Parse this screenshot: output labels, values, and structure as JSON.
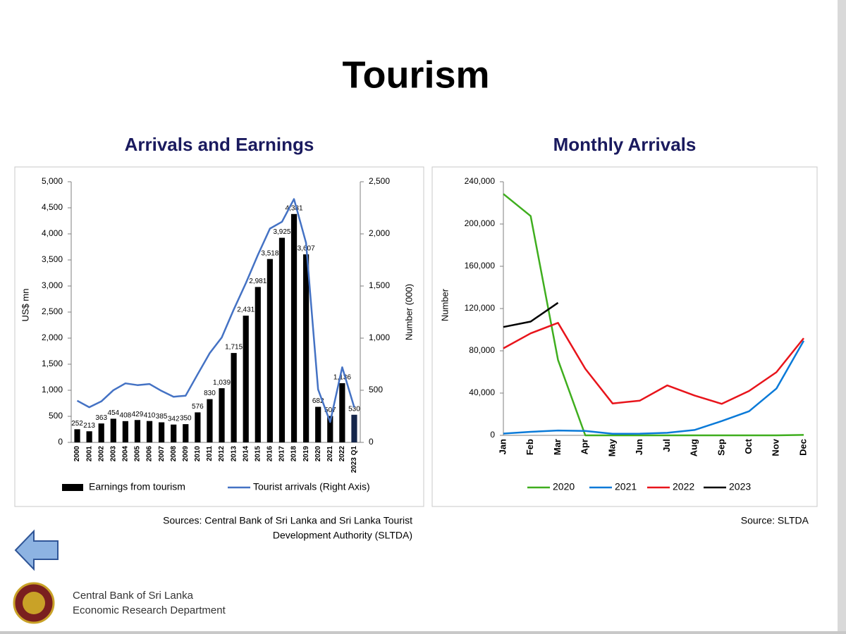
{
  "title": "Tourism",
  "sources": [
    "Sources: Central Bank of Sri Lanka and Sri Lanka Tourist",
    "Development Authority (SLTDA)"
  ],
  "source2": "Source: SLTDA",
  "footer": [
    "Central Bank of Sri Lanka",
    "Economic Research Department"
  ],
  "chart_data": [
    {
      "type": "bar",
      "title": "Arrivals and Earnings",
      "categories": [
        "2000",
        "2001",
        "2002",
        "2003",
        "2004",
        "2005",
        "2006",
        "2007",
        "2008",
        "2009",
        "2010",
        "2011",
        "2012",
        "2013",
        "2014",
        "2015",
        "2016",
        "2017",
        "2018",
        "2019",
        "2020",
        "2021",
        "2022",
        "2023 Q1"
      ],
      "series": [
        {
          "name": "Earnings from tourism",
          "type": "bar",
          "color": "#000000",
          "values": [
            252,
            213,
            363,
            454,
            408,
            429,
            410,
            385,
            342,
            350,
            576,
            830,
            1039,
            1715,
            2431,
            2981,
            3518,
            3925,
            4381,
            3607,
            682,
            507,
            1136,
            530
          ],
          "value_labels": [
            "252",
            "213",
            "363",
            "454",
            "408",
            "429",
            "410",
            "385",
            "342",
            "350",
            "576",
            "830",
            "1,039",
            "1,715",
            "2,431",
            "2,981",
            "3,518",
            "3,925",
            "4,381",
            "3,607",
            "682",
            "507",
            "1,136",
            "530"
          ]
        },
        {
          "name": "Tourist arrivals (Right Axis)",
          "type": "line",
          "color": "#4472c4",
          "axis": "y2",
          "values": [
            400,
            337,
            393,
            501,
            566,
            549,
            560,
            494,
            438,
            448,
            654,
            856,
            1006,
            1275,
            1527,
            1798,
            2051,
            2116,
            2334,
            1914,
            508,
            195,
            720,
            335
          ]
        }
      ],
      "ylabel": "US$ mn",
      "y2label": "Number (000)",
      "ylim": [
        0,
        5000
      ],
      "yticks": [
        0,
        500,
        {
          "value": 1000,
          "label": "1,000"
        },
        {
          "value": 1500,
          "label": "1,500"
        },
        {
          "value": 2000,
          "label": "2,000"
        },
        {
          "value": 2500,
          "label": "2,500"
        },
        {
          "value": 3000,
          "label": "3,000"
        },
        {
          "value": 3500,
          "label": "3,500"
        },
        {
          "value": 4000,
          "label": "4,000"
        },
        {
          "value": 4500,
          "label": "4,500"
        },
        {
          "value": 5000,
          "label": "5,000"
        }
      ],
      "y2lim": [
        0,
        2500
      ],
      "y2ticks": [
        0,
        500,
        {
          "value": 1000,
          "label": "1,000"
        },
        {
          "value": 1500,
          "label": "1,500"
        },
        {
          "value": 2000,
          "label": "2,000"
        },
        {
          "value": 2500,
          "label": "2,500"
        }
      ],
      "grid": false,
      "legend": "bottom"
    },
    {
      "type": "line",
      "title": "Monthly Arrivals",
      "categories": [
        "Jan",
        "Feb",
        "Mar",
        "Apr",
        "May",
        "Jun",
        "Jul",
        "Aug",
        "Sep",
        "Oct",
        "Nov",
        "Dec"
      ],
      "series": [
        {
          "name": "2020",
          "color": "#3fae1e",
          "values": [
            228434,
            207507,
            71370,
            0,
            0,
            0,
            0,
            0,
            0,
            0,
            0,
            393
          ]
        },
        {
          "name": "2021",
          "color": "#0a7ad8",
          "values": [
            1682,
            3366,
            4581,
            4168,
            1497,
            1614,
            2429,
            5040,
            13547,
            22771,
            44294,
            89506
          ]
        },
        {
          "name": "2022",
          "color": "#e8141b",
          "values": [
            82327,
            96507,
            106500,
            62980,
            30207,
            32856,
            47293,
            37760,
            29802,
            42026,
            59759,
            91961
          ]
        },
        {
          "name": "2023",
          "color": "#000000",
          "values": [
            102545,
            107639,
            125495,
            null,
            null,
            null,
            null,
            null,
            null,
            null,
            null,
            null
          ]
        }
      ],
      "ylabel": "Number",
      "ylim": [
        0,
        240000
      ],
      "yticks": [
        0,
        {
          "value": 40000,
          "label": "40,000"
        },
        {
          "value": 80000,
          "label": "80,000"
        },
        {
          "value": 120000,
          "label": "120,000"
        },
        {
          "value": 160000,
          "label": "160,000"
        },
        {
          "value": 200000,
          "label": "200,000"
        },
        {
          "value": 240000,
          "label": "240,000"
        }
      ],
      "grid": false,
      "legend": "bottom"
    }
  ]
}
